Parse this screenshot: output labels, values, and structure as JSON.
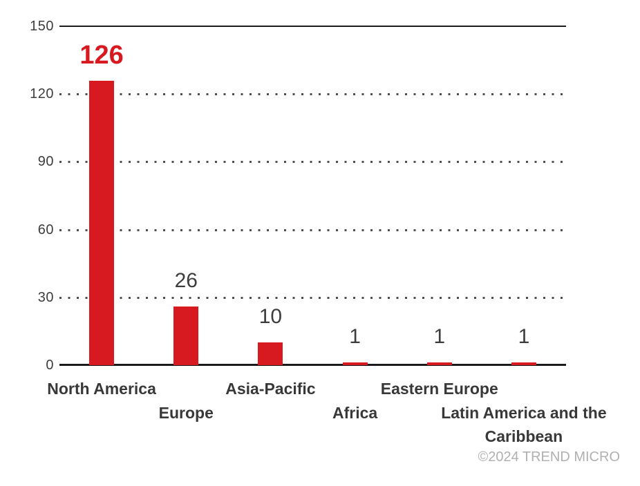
{
  "chart_data": {
    "type": "bar",
    "categories": [
      "North America",
      "Europe",
      "Asia-Pacific",
      "Africa",
      "Eastern Europe",
      "Latin America and the Caribbean"
    ],
    "values": [
      126,
      26,
      10,
      1,
      1,
      1
    ],
    "value_labels": [
      "126",
      "26",
      "10",
      "1",
      "1",
      "1"
    ],
    "highlight_index": 0,
    "title": "",
    "xlabel": "",
    "ylabel": "",
    "ylim": [
      0,
      150
    ],
    "yticks": [
      0,
      30,
      60,
      90,
      120,
      150
    ],
    "ytick_labels": [
      "0",
      "30",
      "60",
      "90",
      "120",
      "150"
    ],
    "grid": "horizontal dotted; top line and baseline solid",
    "legend": "none",
    "bar_color": "#d71920",
    "highlight_value_color": "#d71920",
    "value_label_color": "#3d3d3d",
    "category_label_color": "#383838",
    "axis_color": "#1a1a1a",
    "gridline_dot_color": "#4f4f4f"
  },
  "footer": {
    "copyright": "©2024 TREND MICRO"
  }
}
